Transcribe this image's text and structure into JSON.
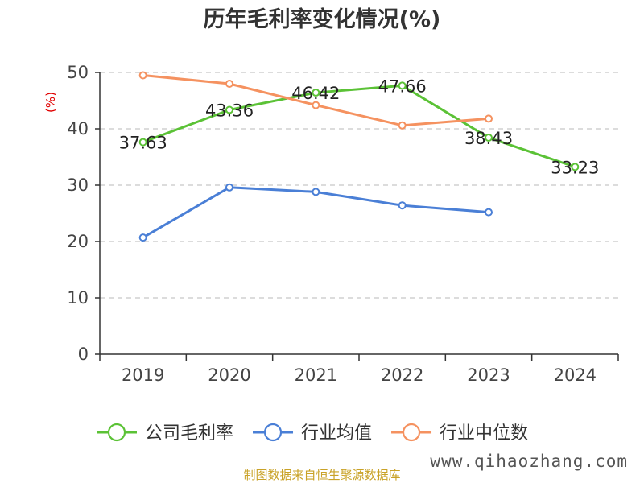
{
  "chart_data": {
    "type": "line",
    "title": "历年毛利率变化情况(%)",
    "ylabel": "(%)",
    "xlabel": "",
    "categories": [
      "2019",
      "2020",
      "2021",
      "2022",
      "2023",
      "2024"
    ],
    "ylim": [
      0,
      50
    ],
    "yticks": [
      0,
      10,
      20,
      30,
      40,
      50
    ],
    "grid": true,
    "legend_position": "bottom",
    "series": [
      {
        "name": "公司毛利率",
        "color": "#5bc236",
        "values": [
          37.63,
          43.36,
          46.42,
          47.66,
          38.43,
          33.23
        ],
        "show_labels": true
      },
      {
        "name": "行业均值",
        "color": "#4a7fd6",
        "values": [
          20.7,
          29.6,
          28.8,
          26.4,
          25.2,
          null
        ],
        "show_labels": false
      },
      {
        "name": "行业中位数",
        "color": "#f59260",
        "values": [
          49.5,
          48.0,
          44.2,
          40.6,
          41.8,
          null
        ],
        "show_labels": false
      }
    ]
  },
  "footer": {
    "source": "制图数据来自恒生聚源数据库",
    "watermark": "www.qihaozhang.com"
  }
}
